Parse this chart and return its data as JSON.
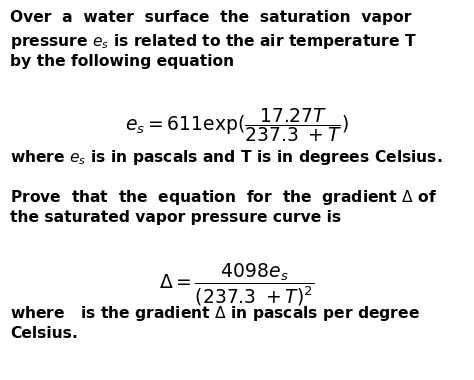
{
  "background_color": "#ffffff",
  "text_color": "#000000",
  "figsize": [
    4.74,
    3.8
  ],
  "dpi": 100,
  "line1": "Over  a  water  surface  the  saturation  vapor",
  "line2": "pressure $e_s$ is related to the air temperature T",
  "line3": "by the following equation",
  "eq1": "$e_s = 611\\mathrm{exp}(\\dfrac{17.27T}{237.3\\ +T})$",
  "line4": "where $e_s$ is in pascals and T is in degrees Celsius.",
  "line5": "Prove  that  the  equation  for  the  gradient $\\Delta$ of",
  "line6": "the saturated vapor pressure curve is",
  "eq2": "$\\Delta= \\dfrac{4098e_s}{(237.3\\ +T)^2}$",
  "line7": "where   is the gradient $\\Delta$ in pascals per degree",
  "line8": "Celsius.",
  "fs_body": 11.2,
  "fs_eq": 13.5
}
